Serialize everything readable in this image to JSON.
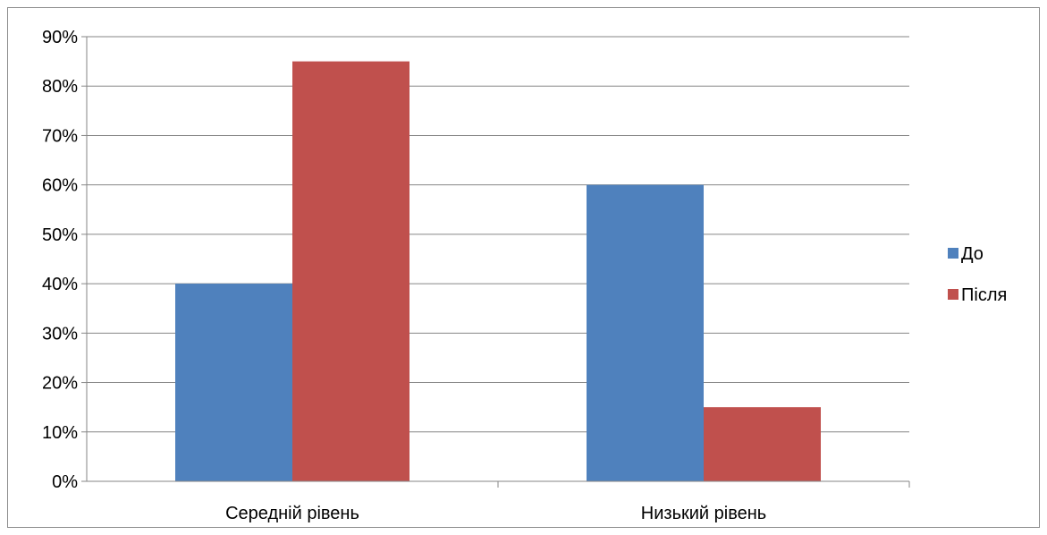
{
  "chart_data": {
    "type": "bar",
    "title": "",
    "xlabel": "",
    "ylabel": "",
    "categories": [
      "Середній рівень",
      "Низький рівень"
    ],
    "series": [
      {
        "name": "До",
        "values": [
          40,
          60
        ],
        "color": "#4F81BD"
      },
      {
        "name": "Після",
        "values": [
          85,
          15
        ],
        "color": "#C0504D"
      }
    ],
    "ylim": [
      0,
      90
    ],
    "y_ticks": [
      0,
      10,
      20,
      30,
      40,
      50,
      60,
      70,
      80,
      90
    ],
    "y_tick_labels": [
      "0%",
      "10%",
      "20%",
      "30%",
      "40%",
      "50%",
      "60%",
      "70%",
      "80%",
      "90%"
    ],
    "grid": true,
    "legend_position": "right",
    "gridline_color": "#868686",
    "axis_color": "#868686"
  }
}
